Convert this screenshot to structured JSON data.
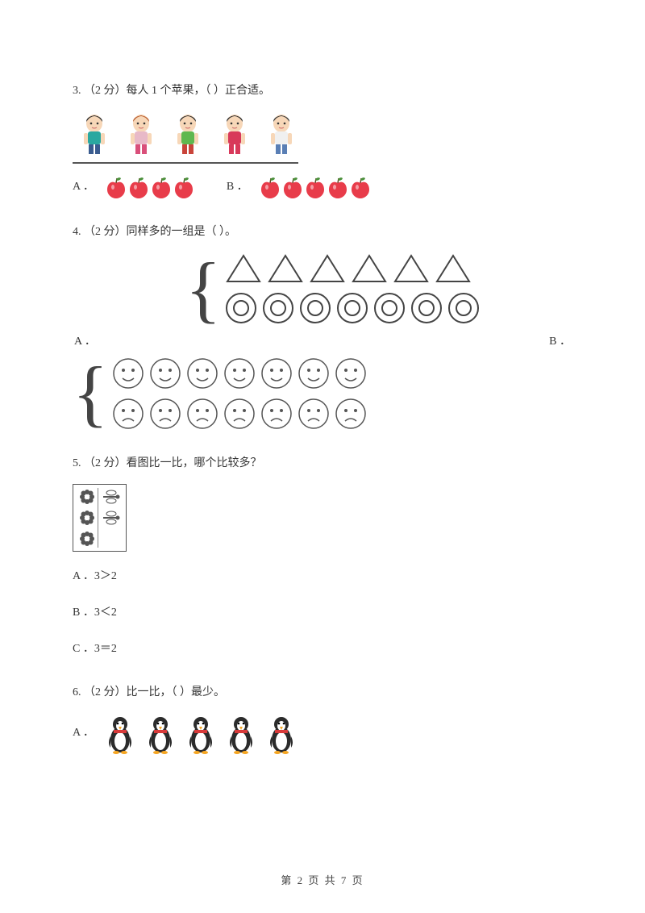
{
  "q3": {
    "prefix": "3.  （2 分）每人 1 个苹果，（    ）正合适。",
    "kids_count": 5,
    "option_a_label": "A ．",
    "option_a_apples": 4,
    "option_b_label": "B ．",
    "option_b_apples": 5,
    "kid_colors": [
      {
        "hair": "#2d2d2d",
        "shirt": "#2aa8a0",
        "pants": "#3a5c8f"
      },
      {
        "hair": "#b85c2e",
        "shirt": "#e8b9c8",
        "pants": "#d94f7a"
      },
      {
        "hair": "#2d2d2d",
        "shirt": "#5fb84f",
        "pants": "#c9443a"
      },
      {
        "hair": "#2d2d2d",
        "shirt": "#d8395a",
        "pants": "#d8395a"
      },
      {
        "hair": "#3a3a3a",
        "shirt": "#f0f0f0",
        "pants": "#5a7fb5"
      }
    ],
    "apple_color": "#e83c4a",
    "apple_leaf": "#4a8f3a"
  },
  "q4": {
    "prefix": "4.  （2 分）同样多的一组是（    ）。",
    "option_a_label": "A      ．",
    "option_b_label": "B      ．",
    "set_a": {
      "triangles": 6,
      "rings": 7
    },
    "set_b": {
      "happy": 7,
      "sad": 7
    },
    "shape_stroke": "#444444",
    "face_stroke": "#555555"
  },
  "q5": {
    "prefix": "5.  （2 分）看图比一比，哪个比较多？",
    "left_count": 3,
    "right_count": 2,
    "opt_a": "A ．3＞2",
    "opt_b": "B ．3＜2",
    "opt_c": "C ．3＝2",
    "flower_color": "#555555",
    "dragonfly_color": "#555555"
  },
  "q6": {
    "prefix": "6.  （2 分）比一比，（    ）最少。",
    "option_a_label": "A ．",
    "penguins": 5,
    "penguin_body": "#2b2b2b",
    "penguin_belly": "#ffffff",
    "penguin_beak": "#f5a623",
    "penguin_scarf": "#d83a3a"
  },
  "footer": "第 2 页 共 7 页"
}
